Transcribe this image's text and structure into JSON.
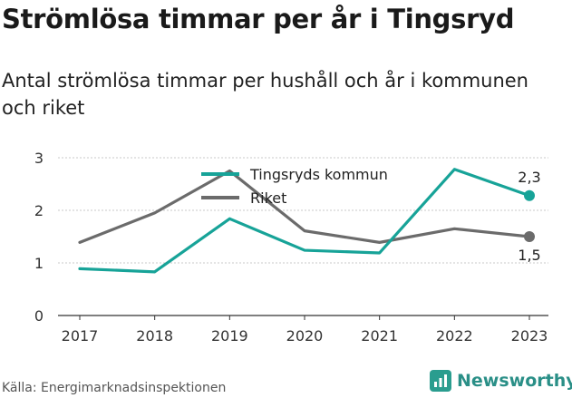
{
  "title": "Strömlösa timmar per år i Tingsryd",
  "subtitle": "Antal strömlösa timmar per hushåll och år i kommunen och riket",
  "source": "Källa: Energimarknadsinspektionen",
  "brand": {
    "name": "Newsworthy",
    "icon": "bar-chart-logo-icon",
    "color": "#2a9d8f"
  },
  "chart_data": {
    "type": "line",
    "x": [
      "2017",
      "2018",
      "2019",
      "2020",
      "2021",
      "2022",
      "2023"
    ],
    "ylim": [
      0,
      3
    ],
    "yticks": [
      "0",
      "1",
      "2",
      "3"
    ],
    "grid": true,
    "legend_position": "top-center",
    "series": [
      {
        "name": "Tingsryds kommun",
        "color": "#17a398",
        "values": [
          0.89,
          0.83,
          1.84,
          1.24,
          1.19,
          2.78,
          2.28
        ],
        "end_label": "2,3"
      },
      {
        "name": "Riket",
        "color": "#6b6b6b",
        "values": [
          1.39,
          1.95,
          2.75,
          1.61,
          1.39,
          1.65,
          1.5
        ],
        "end_label": "1,5"
      }
    ]
  }
}
